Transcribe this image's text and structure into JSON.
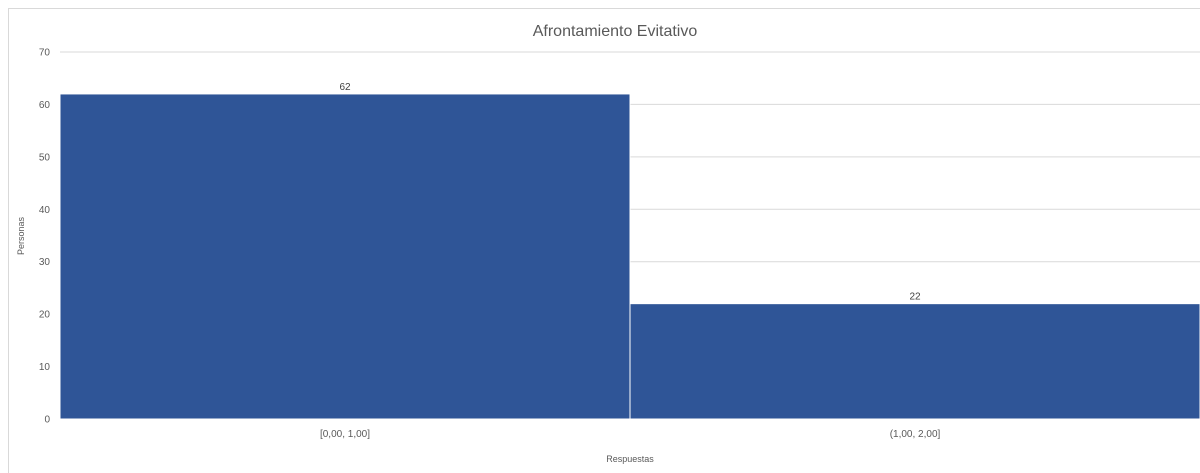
{
  "chart_data": {
    "type": "bar",
    "title": "Afrontamiento Evitativo",
    "xlabel": "Respuestas",
    "ylabel": "Personas",
    "categories": [
      "[0,00, 1,00]",
      "(1,00, 2,00]"
    ],
    "values": [
      62,
      22
    ],
    "ylim": [
      0,
      70
    ],
    "yticks": [
      0,
      10,
      20,
      30,
      40,
      50,
      60,
      70
    ],
    "grid": true,
    "legend": "none",
    "bar_color": "#2f5597"
  }
}
